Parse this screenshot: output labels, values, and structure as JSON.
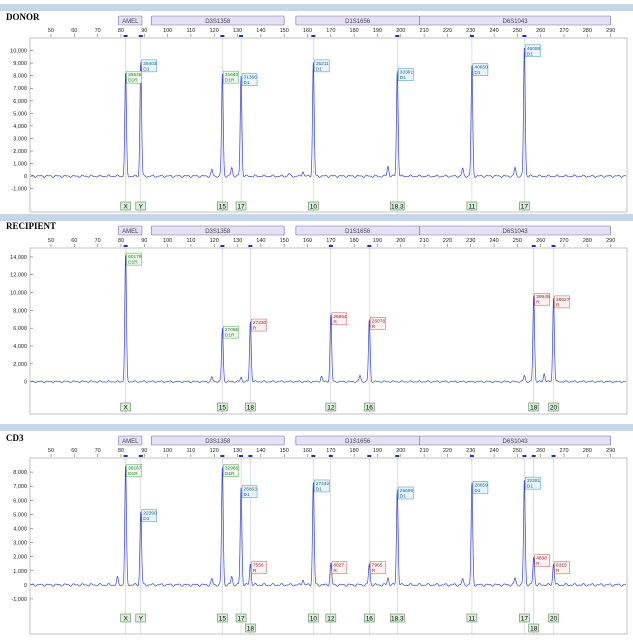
{
  "colors": {
    "band": "#c5d6ea",
    "trace": "#3344dd",
    "bin_fill": "#e6e0f5",
    "bin_stroke": "#7a6aa8",
    "label_d_fill": "#eef8ee",
    "label_d_stroke": "#4caa4c",
    "label_b_fill": "#e8f4fb",
    "label_b_stroke": "#3a8fc7",
    "label_r_fill": "#fdf1f1",
    "label_r_stroke": "#c65454",
    "allele_fill": "#dcefdc",
    "allele_stroke": "#5a8a5a",
    "grid": "#bfbfbf"
  },
  "chart_data": [
    {
      "type": "line",
      "title": "DONOR",
      "x_ticks": [
        50,
        60,
        70,
        80,
        90,
        100,
        110,
        120,
        130,
        140,
        150,
        160,
        170,
        180,
        190,
        200,
        210,
        220,
        230,
        240,
        250,
        260,
        270,
        280,
        290
      ],
      "xlim": [
        41,
        297
      ],
      "y_ticks": [
        "10,000",
        "9,000",
        "8,000",
        "7,000",
        "6,000",
        "5,000",
        "4,000",
        "3,000",
        "2,000",
        "1,000",
        "0",
        "-1,000"
      ],
      "y_tick_values": [
        10000,
        9000,
        8000,
        7000,
        6000,
        5000,
        4000,
        3000,
        2000,
        1000,
        0,
        -1000
      ],
      "ylim": [
        -1500,
        11000
      ],
      "bins": [
        {
          "label": "AMEL",
          "start": 79,
          "end": 89
        },
        {
          "label": "D3S1358",
          "start": 93,
          "end": 150
        },
        {
          "label": "D1S1656",
          "start": 155,
          "end": 208
        },
        {
          "label": "D6S1043",
          "start": 208,
          "end": 290
        }
      ],
      "peaks": [
        {
          "x": 82,
          "height": 8200,
          "line1": "35546",
          "line2": "D1R",
          "style": "d",
          "allele": "X"
        },
        {
          "x": 88.5,
          "height": 9100,
          "line1": "39403",
          "line2": "D1",
          "style": "b",
          "allele": "Y"
        },
        {
          "x": 123.5,
          "height": 8200,
          "line1": "31640",
          "line2": "D1R",
          "style": "d",
          "allele": "15"
        },
        {
          "x": 131.5,
          "height": 8000,
          "line1": "31366",
          "line2": "D1",
          "style": "b",
          "allele": "17"
        },
        {
          "x": 162.5,
          "height": 9100,
          "line1": "35211",
          "line2": "D1",
          "style": "b",
          "allele": "10"
        },
        {
          "x": 198.5,
          "height": 8400,
          "line1": "33391",
          "line2": "D1",
          "style": "b",
          "allele": "18.3"
        },
        {
          "x": 230.5,
          "height": 8800,
          "line1": "40650",
          "line2": "D1",
          "style": "b",
          "allele": "11"
        },
        {
          "x": 253,
          "height": 10300,
          "line1": "46088",
          "line2": "D1",
          "style": "b",
          "allele": "17"
        }
      ],
      "minor_peaks": [
        {
          "x": 119,
          "height": 500
        },
        {
          "x": 127.5,
          "height": 700
        },
        {
          "x": 152,
          "height": 200
        },
        {
          "x": 158,
          "height": 400
        },
        {
          "x": 194.5,
          "height": 800
        },
        {
          "x": 226.5,
          "height": 600
        },
        {
          "x": 249,
          "height": 700
        }
      ]
    },
    {
      "type": "line",
      "title": "RECIPIENT",
      "x_ticks": [
        50,
        60,
        70,
        80,
        90,
        100,
        110,
        120,
        130,
        140,
        150,
        160,
        170,
        180,
        190,
        200,
        210,
        220,
        230,
        240,
        250,
        260,
        270,
        280,
        290
      ],
      "xlim": [
        41,
        297
      ],
      "y_ticks": [
        "14,000",
        "12,000",
        "10,000",
        "8,000",
        "6,000",
        "4,000",
        "2,000",
        "0"
      ],
      "y_tick_values": [
        14000,
        12000,
        10000,
        8000,
        6000,
        4000,
        2000,
        0
      ],
      "ylim": [
        -1500,
        15000
      ],
      "bins": [
        {
          "label": "AMEL",
          "start": 79,
          "end": 89
        },
        {
          "label": "D3S1358",
          "start": 93,
          "end": 150
        },
        {
          "label": "D1S1656",
          "start": 155,
          "end": 208
        },
        {
          "label": "D6S1043",
          "start": 208,
          "end": 290
        }
      ],
      "peaks": [
        {
          "x": 82,
          "height": 14200,
          "line1": "60179",
          "line2": "D1R",
          "style": "d",
          "allele": "X"
        },
        {
          "x": 123.5,
          "height": 6000,
          "line1": "27086",
          "line2": "D1R",
          "style": "d",
          "allele": "15"
        },
        {
          "x": 135.5,
          "height": 6800,
          "line1": "27230",
          "line2": "R",
          "style": "r",
          "allele": "18"
        },
        {
          "x": 170,
          "height": 7500,
          "line1": "26854",
          "line2": "R",
          "style": "r",
          "allele": "12"
        },
        {
          "x": 186.5,
          "height": 7000,
          "line1": "25076",
          "line2": "R",
          "style": "r",
          "allele": "16"
        },
        {
          "x": 257,
          "height": 9700,
          "line1": "28945",
          "line2": "R",
          "style": "r",
          "allele": "18"
        },
        {
          "x": 265.5,
          "height": 9400,
          "line1": "38627",
          "line2": "R",
          "style": "r",
          "allele": "20"
        }
      ],
      "minor_peaks": [
        {
          "x": 119,
          "height": 500
        },
        {
          "x": 131.5,
          "height": 500
        },
        {
          "x": 166,
          "height": 600
        },
        {
          "x": 182.5,
          "height": 700
        },
        {
          "x": 253,
          "height": 700
        },
        {
          "x": 261.5,
          "height": 900
        }
      ]
    },
    {
      "type": "line",
      "title": "CD3",
      "x_ticks": [
        50,
        60,
        70,
        80,
        90,
        100,
        110,
        120,
        130,
        140,
        150,
        160,
        170,
        180,
        190,
        200,
        210,
        220,
        230,
        240,
        250,
        260,
        270,
        280,
        290
      ],
      "xlim": [
        41,
        297
      ],
      "y_ticks": [
        "8,000",
        "7,000",
        "6,000",
        "5,000",
        "4,000",
        "3,000",
        "2,000",
        "1,000",
        "0",
        "-1,000"
      ],
      "y_tick_values": [
        8000,
        7000,
        6000,
        5000,
        4000,
        3000,
        2000,
        1000,
        0,
        -1000
      ],
      "ylim": [
        -1500,
        9000
      ],
      "bins": [
        {
          "label": "AMEL",
          "start": 79,
          "end": 89
        },
        {
          "label": "D3S1358",
          "start": 93,
          "end": 150
        },
        {
          "label": "D1S1656",
          "start": 155,
          "end": 208
        },
        {
          "label": "D6S1043",
          "start": 208,
          "end": 290
        }
      ],
      "peaks": [
        {
          "x": 82,
          "height": 8400,
          "line1": "36167",
          "line2": "D1R",
          "style": "d",
          "allele": "X"
        },
        {
          "x": 88.5,
          "height": 5200,
          "line1": "22390",
          "line2": "D1",
          "style": "b",
          "allele": "Y"
        },
        {
          "x": 123.5,
          "height": 8400,
          "line1": "32966",
          "line2": "D1R",
          "style": "d",
          "allele": "15"
        },
        {
          "x": 131.5,
          "height": 6900,
          "line1": "25863",
          "line2": "D1",
          "style": "b",
          "allele": "17"
        },
        {
          "x": 135.5,
          "height": 1500,
          "line1": "7556",
          "line2": "R",
          "style": "r",
          "allele": "18"
        },
        {
          "x": 162.5,
          "height": 7300,
          "line1": "27442",
          "line2": "D1",
          "style": "b",
          "allele": "10"
        },
        {
          "x": 170,
          "height": 1500,
          "line1": "8027",
          "line2": "R",
          "style": "r",
          "allele": "12"
        },
        {
          "x": 186.5,
          "height": 1500,
          "line1": "7965",
          "line2": "R",
          "style": "r",
          "allele": "16"
        },
        {
          "x": 198.5,
          "height": 6800,
          "line1": "25696",
          "line2": "D1",
          "style": "b",
          "allele": "18.3"
        },
        {
          "x": 230.5,
          "height": 7200,
          "line1": "28659",
          "line2": "D1",
          "style": "b",
          "allele": "11"
        },
        {
          "x": 253,
          "height": 7500,
          "line1": "32281",
          "line2": "D1",
          "style": "b",
          "allele": "17"
        },
        {
          "x": 257,
          "height": 2000,
          "line1": "4838",
          "line2": "R",
          "style": "r",
          "allele": "18"
        },
        {
          "x": 265.5,
          "height": 1500,
          "line1": "8315",
          "line2": "R",
          "style": "r",
          "allele": "20"
        }
      ],
      "minor_peaks": [
        {
          "x": 78.5,
          "height": 500
        },
        {
          "x": 119,
          "height": 400
        },
        {
          "x": 127.5,
          "height": 600
        },
        {
          "x": 158,
          "height": 400
        },
        {
          "x": 194.5,
          "height": 500
        },
        {
          "x": 226.5,
          "height": 400
        },
        {
          "x": 249,
          "height": 500
        }
      ]
    }
  ]
}
